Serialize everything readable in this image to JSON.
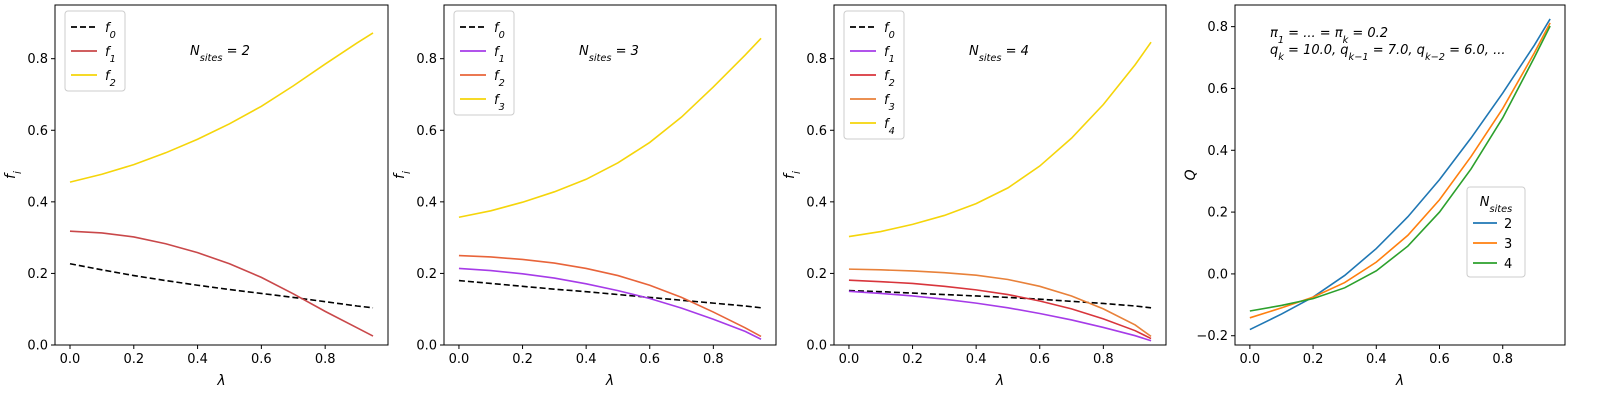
{
  "chart_data": [
    {
      "type": "line",
      "ylabel": "f_i",
      "xlabel": "λ",
      "xlim": [
        -0.047,
        0.997
      ],
      "ylim": [
        0,
        0.95
      ],
      "xticks": [
        0.0,
        0.2,
        0.4,
        0.6,
        0.8
      ],
      "yticks": [
        0.0,
        0.2,
        0.4,
        0.6,
        0.8
      ],
      "tick_labels_x": [
        "0.0",
        "0.2",
        "0.4",
        "0.6",
        "0.8"
      ],
      "tick_labels_y": [
        "0.0",
        "0.2",
        "0.4",
        "0.6",
        "0.8"
      ],
      "annotation": "N_sites = 2",
      "legend_position": "upper-left",
      "x": [
        0.0,
        0.1,
        0.2,
        0.3,
        0.4,
        0.5,
        0.6,
        0.7,
        0.8,
        0.9,
        0.95
      ],
      "series": [
        {
          "name": "f_0",
          "color": "#000000",
          "dashed": true,
          "values": [
            0.227,
            0.21,
            0.194,
            0.18,
            0.167,
            0.155,
            0.144,
            0.133,
            0.121,
            0.109,
            0.104
          ]
        },
        {
          "name": "f_1",
          "color": "#c9484a",
          "dashed": false,
          "values": [
            0.318,
            0.313,
            0.302,
            0.283,
            0.258,
            0.227,
            0.189,
            0.143,
            0.094,
            0.048,
            0.025
          ]
        },
        {
          "name": "f_2",
          "color": "#f5d50a",
          "dashed": false,
          "values": [
            0.455,
            0.477,
            0.504,
            0.537,
            0.575,
            0.618,
            0.667,
            0.724,
            0.785,
            0.844,
            0.872
          ]
        }
      ]
    },
    {
      "type": "line",
      "ylabel": "f_i",
      "xlabel": "λ",
      "xlim": [
        -0.047,
        0.997
      ],
      "ylim": [
        0,
        0.95
      ],
      "xticks": [
        0.0,
        0.2,
        0.4,
        0.6,
        0.8
      ],
      "yticks": [
        0.0,
        0.2,
        0.4,
        0.6,
        0.8
      ],
      "tick_labels_x": [
        "0.0",
        "0.2",
        "0.4",
        "0.6",
        "0.8"
      ],
      "tick_labels_y": [
        "0.0",
        "0.2",
        "0.4",
        "0.6",
        "0.8"
      ],
      "annotation": "N_sites = 3",
      "legend_position": "upper-left",
      "x": [
        0.0,
        0.1,
        0.2,
        0.3,
        0.4,
        0.5,
        0.6,
        0.7,
        0.8,
        0.9,
        0.95
      ],
      "series": [
        {
          "name": "f_0",
          "color": "#000000",
          "dashed": true,
          "values": [
            0.18,
            0.172,
            0.164,
            0.156,
            0.149,
            0.141,
            0.133,
            0.125,
            0.117,
            0.109,
            0.104
          ]
        },
        {
          "name": "f_1",
          "color": "#a63be8",
          "dashed": false,
          "values": [
            0.214,
            0.208,
            0.199,
            0.187,
            0.171,
            0.152,
            0.13,
            0.103,
            0.072,
            0.038,
            0.016
          ]
        },
        {
          "name": "f_2",
          "color": "#e8643a",
          "dashed": false,
          "values": [
            0.25,
            0.246,
            0.239,
            0.229,
            0.214,
            0.194,
            0.167,
            0.133,
            0.092,
            0.048,
            0.024
          ]
        },
        {
          "name": "f_3",
          "color": "#f5d50a",
          "dashed": false,
          "values": [
            0.357,
            0.375,
            0.399,
            0.428,
            0.463,
            0.509,
            0.566,
            0.637,
            0.721,
            0.81,
            0.857
          ]
        }
      ]
    },
    {
      "type": "line",
      "ylabel": "f_i",
      "xlabel": "λ",
      "xlim": [
        -0.047,
        0.997
      ],
      "ylim": [
        0,
        0.95
      ],
      "xticks": [
        0.0,
        0.2,
        0.4,
        0.6,
        0.8
      ],
      "yticks": [
        0.0,
        0.2,
        0.4,
        0.6,
        0.8
      ],
      "tick_labels_x": [
        "0.0",
        "0.2",
        "0.4",
        "0.6",
        "0.8"
      ],
      "tick_labels_y": [
        "0.0",
        "0.2",
        "0.4",
        "0.6",
        "0.8"
      ],
      "annotation": "N_sites = 4",
      "legend_position": "upper-left",
      "x": [
        0.0,
        0.1,
        0.2,
        0.3,
        0.4,
        0.5,
        0.6,
        0.7,
        0.8,
        0.9,
        0.95
      ],
      "series": [
        {
          "name": "f_0",
          "color": "#000000",
          "dashed": true,
          "values": [
            0.152,
            0.149,
            0.145,
            0.141,
            0.137,
            0.133,
            0.128,
            0.122,
            0.116,
            0.109,
            0.104
          ]
        },
        {
          "name": "f_1",
          "color": "#a63be8",
          "dashed": false,
          "values": [
            0.15,
            0.144,
            0.137,
            0.128,
            0.117,
            0.104,
            0.088,
            0.07,
            0.049,
            0.026,
            0.012
          ]
        },
        {
          "name": "f_2",
          "color": "#d8353c",
          "dashed": false,
          "values": [
            0.181,
            0.177,
            0.172,
            0.164,
            0.154,
            0.141,
            0.123,
            0.101,
            0.073,
            0.04,
            0.018
          ]
        },
        {
          "name": "f_3",
          "color": "#e8813a",
          "dashed": false,
          "values": [
            0.212,
            0.21,
            0.207,
            0.202,
            0.195,
            0.183,
            0.164,
            0.137,
            0.101,
            0.056,
            0.024
          ]
        },
        {
          "name": "f_4",
          "color": "#f5d50a",
          "dashed": false,
          "values": [
            0.303,
            0.317,
            0.337,
            0.362,
            0.395,
            0.439,
            0.5,
            0.578,
            0.672,
            0.783,
            0.846
          ]
        }
      ]
    },
    {
      "type": "line",
      "ylabel": "Q",
      "xlabel": "λ",
      "xlim": [
        -0.047,
        0.997
      ],
      "ylim": [
        -0.23,
        0.87
      ],
      "xticks": [
        0.0,
        0.2,
        0.4,
        0.6,
        0.8
      ],
      "yticks": [
        -0.2,
        0.0,
        0.2,
        0.4,
        0.6,
        0.8
      ],
      "tick_labels_x": [
        "0.0",
        "0.2",
        "0.4",
        "0.6",
        "0.8"
      ],
      "tick_labels_y": [
        "−0.2",
        "0.0",
        "0.2",
        "0.4",
        "0.6",
        "0.8"
      ],
      "annotation_lines": [
        "π_1 = ... = π_k = 0.2",
        "q_k = 10.0, q_{k−1} = 7.0, q_{k−2} = 6.0, ..."
      ],
      "legend_title": "N_sites",
      "legend_position": "center-right",
      "x": [
        0.0,
        0.1,
        0.2,
        0.3,
        0.4,
        0.5,
        0.6,
        0.7,
        0.8,
        0.9,
        0.95
      ],
      "series": [
        {
          "name": "2",
          "color": "#1f77b4",
          "dashed": false,
          "values": [
            -0.18,
            -0.13,
            -0.075,
            -0.005,
            0.082,
            0.185,
            0.305,
            0.44,
            0.585,
            0.74,
            0.825
          ]
        },
        {
          "name": "3",
          "color": "#ff7f0e",
          "dashed": false,
          "values": [
            -0.142,
            -0.11,
            -0.075,
            -0.028,
            0.038,
            0.125,
            0.24,
            0.38,
            0.535,
            0.715,
            0.812
          ]
        },
        {
          "name": "4",
          "color": "#2ca02c",
          "dashed": false,
          "values": [
            -0.12,
            -0.102,
            -0.08,
            -0.045,
            0.01,
            0.09,
            0.2,
            0.34,
            0.505,
            0.7,
            0.802
          ]
        }
      ]
    }
  ]
}
